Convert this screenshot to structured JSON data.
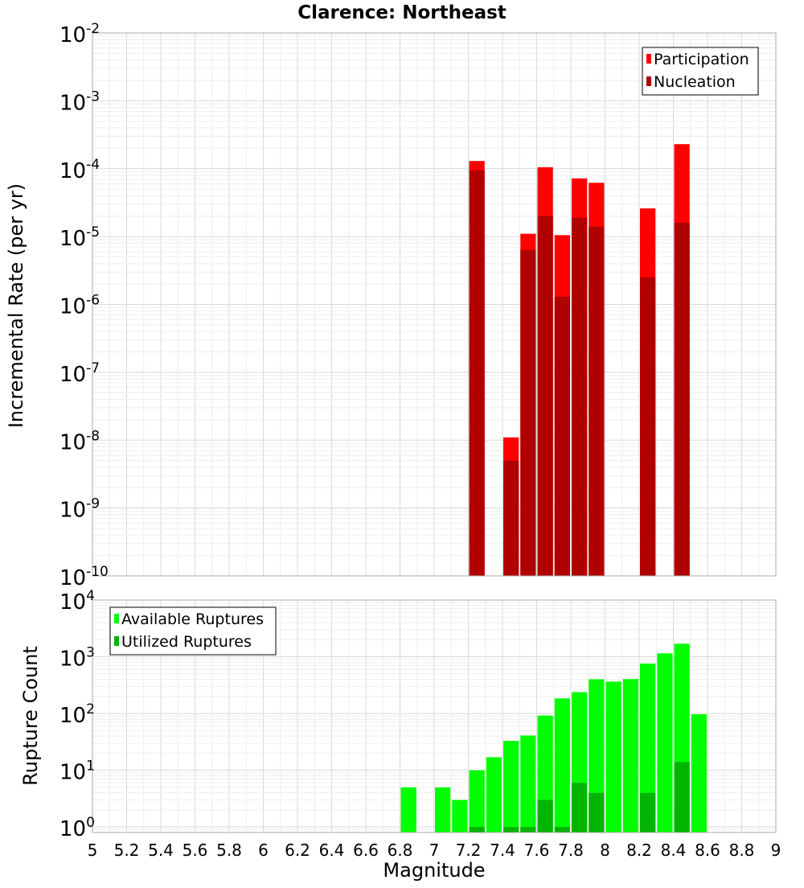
{
  "chart_data": [
    {
      "type": "bar",
      "title": "Clarence: Northeast",
      "ylabel": "Incremental Rate (per yr)",
      "xlabel": "",
      "x_range": [
        5,
        9
      ],
      "y_scale": "log",
      "y_range": [
        1e-10,
        0.01
      ],
      "y_tick_exponents": [
        "-10",
        "-9",
        "-8",
        "-7",
        "-6",
        "-5",
        "-4",
        "-3",
        "-2"
      ],
      "grid": true,
      "legend_position": "top-right",
      "series": [
        {
          "name": "Participation",
          "color": "#ff0000",
          "points": [
            {
              "x": 7.25,
              "y": 0.00013
            },
            {
              "x": 7.45,
              "y": 1.1e-08
            },
            {
              "x": 7.55,
              "y": 1.1e-05
            },
            {
              "x": 7.65,
              "y": 0.000105
            },
            {
              "x": 7.75,
              "y": 1.05e-05
            },
            {
              "x": 7.85,
              "y": 7.2e-05
            },
            {
              "x": 7.95,
              "y": 6.2e-05
            },
            {
              "x": 8.25,
              "y": 2.6e-05
            },
            {
              "x": 8.45,
              "y": 0.00023
            }
          ]
        },
        {
          "name": "Nucleation",
          "color": "#b00000",
          "points": [
            {
              "x": 7.25,
              "y": 9.5e-05
            },
            {
              "x": 7.45,
              "y": 5e-09
            },
            {
              "x": 7.55,
              "y": 6.3e-06
            },
            {
              "x": 7.65,
              "y": 2e-05
            },
            {
              "x": 7.75,
              "y": 1.3e-06
            },
            {
              "x": 7.85,
              "y": 1.9e-05
            },
            {
              "x": 7.95,
              "y": 1.4e-05
            },
            {
              "x": 8.25,
              "y": 2.5e-06
            },
            {
              "x": 8.45,
              "y": 1.6e-05
            }
          ]
        }
      ]
    },
    {
      "type": "bar",
      "title": "",
      "ylabel": "Rupture Count",
      "xlabel": "Magnitude",
      "x_range": [
        5,
        9
      ],
      "x_ticks": [
        "5",
        "5.2",
        "5.4",
        "5.6",
        "5.8",
        "6",
        "6.2",
        "6.4",
        "6.6",
        "6.8",
        "7",
        "7.2",
        "7.4",
        "7.6",
        "7.8",
        "8",
        "8.2",
        "8.4",
        "8.6",
        "8.8",
        "9"
      ],
      "y_scale": "log",
      "y_range": [
        0.8,
        10000.0
      ],
      "y_tick_exponents": [
        "0",
        "1",
        "2",
        "3",
        "4"
      ],
      "grid": true,
      "legend_position": "top-left",
      "series": [
        {
          "name": "Available Ruptures",
          "color": "#00ff00",
          "points": [
            {
              "x": 6.85,
              "y": 5
            },
            {
              "x": 7.05,
              "y": 5
            },
            {
              "x": 7.15,
              "y": 3
            },
            {
              "x": 7.25,
              "y": 10
            },
            {
              "x": 7.35,
              "y": 17
            },
            {
              "x": 7.45,
              "y": 33
            },
            {
              "x": 7.55,
              "y": 41
            },
            {
              "x": 7.65,
              "y": 92
            },
            {
              "x": 7.75,
              "y": 185
            },
            {
              "x": 7.85,
              "y": 238
            },
            {
              "x": 7.95,
              "y": 402
            },
            {
              "x": 8.05,
              "y": 365
            },
            {
              "x": 8.15,
              "y": 405
            },
            {
              "x": 8.25,
              "y": 760
            },
            {
              "x": 8.35,
              "y": 1150
            },
            {
              "x": 8.45,
              "y": 1700
            },
            {
              "x": 8.55,
              "y": 97
            }
          ]
        },
        {
          "name": "Utilized Ruptures",
          "color": "#00b400",
          "points": [
            {
              "x": 7.25,
              "y": 1
            },
            {
              "x": 7.45,
              "y": 1
            },
            {
              "x": 7.55,
              "y": 1
            },
            {
              "x": 7.65,
              "y": 3
            },
            {
              "x": 7.75,
              "y": 1
            },
            {
              "x": 7.85,
              "y": 6
            },
            {
              "x": 7.95,
              "y": 4
            },
            {
              "x": 8.25,
              "y": 4
            },
            {
              "x": 8.45,
              "y": 14
            }
          ]
        }
      ]
    }
  ]
}
